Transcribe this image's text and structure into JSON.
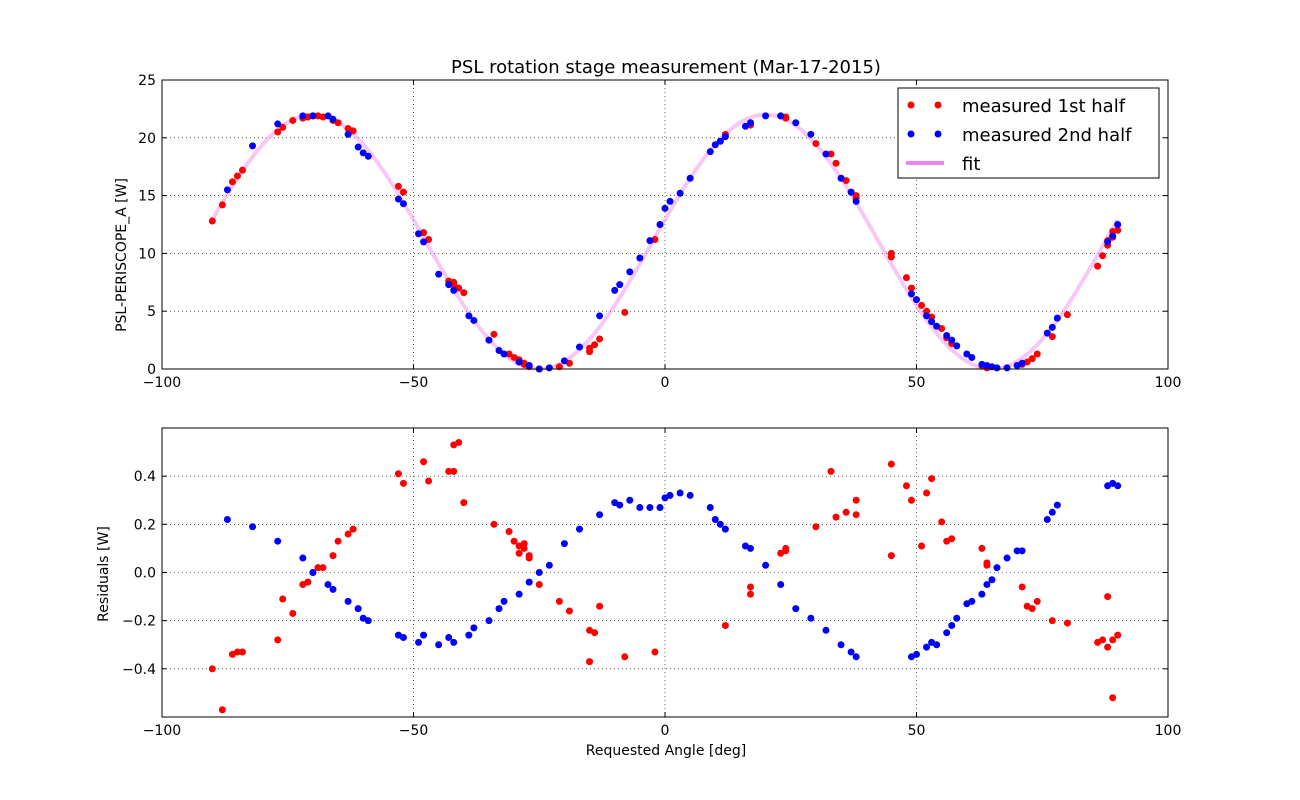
{
  "chart_data": [
    {
      "type": "scatter",
      "title": "PSL rotation stage measurement (Mar-17-2015)",
      "xlabel": "",
      "ylabel": "PSL-PERISCOPE_A [W]",
      "xlim": [
        -100,
        100
      ],
      "ylim": [
        0,
        25
      ],
      "xticks": [
        -100,
        -50,
        0,
        50,
        100
      ],
      "yticks": [
        0,
        5,
        10,
        15,
        20,
        25
      ],
      "xtick_labels": [
        "−100",
        "−50",
        "0",
        "50",
        "100"
      ],
      "ytick_labels": [
        "0",
        "5",
        "10",
        "15",
        "20",
        "25"
      ],
      "grid": true,
      "legend_placement": "top-right",
      "legend": [
        {
          "label": "measured 1st half",
          "color": "#ff0000",
          "marker": "dots"
        },
        {
          "label": "measured 2nd half",
          "color": "#0000ff",
          "marker": "dots"
        },
        {
          "label": "fit",
          "color": "#ee82ee",
          "marker": "line"
        }
      ],
      "fit": {
        "model": "sine",
        "amplitude": 11,
        "offset": 11,
        "period_deg": 90,
        "phase_deg": -2.5,
        "x_range": [
          -90,
          90
        ]
      },
      "series": [
        {
          "name": "measured 1st half",
          "color": "#ff0000",
          "x": [
            -90,
            -88,
            -86,
            -85,
            -84,
            -77,
            -76,
            -74,
            -72,
            -71,
            -70,
            -69,
            -68,
            -66,
            -65,
            -63,
            -62,
            -53,
            -52,
            -48,
            -47,
            -43,
            -42,
            -42,
            -41,
            -40,
            -34,
            -31,
            -30,
            -29,
            -29,
            -28,
            -28,
            -27,
            -27,
            -25,
            -21,
            -19,
            -15,
            -15,
            -14,
            -13,
            -8,
            -2,
            12,
            17,
            17,
            23,
            24,
            24,
            30,
            33,
            34,
            36,
            38,
            38,
            45,
            45,
            48,
            49,
            51,
            52,
            53,
            55,
            56,
            57,
            63,
            64,
            64,
            71,
            72,
            73,
            74,
            77,
            80,
            86,
            87,
            88,
            88,
            89,
            89,
            90
          ],
          "y": [
            12.8,
            14.2,
            16.2,
            16.7,
            17.2,
            20.5,
            20.9,
            21.5,
            21.7,
            21.8,
            21.9,
            21.9,
            21.8,
            21.5,
            21.3,
            20.8,
            20.6,
            15.8,
            15.3,
            11.8,
            11.2,
            7.6,
            7.5,
            7.3,
            7.0,
            6.6,
            3.0,
            1.3,
            1.0,
            0.8,
            0.6,
            0.5,
            0.4,
            0.3,
            0.2,
            0.0,
            0.2,
            0.5,
            1.5,
            1.8,
            2.1,
            2.6,
            4.9,
            11.2,
            20.3,
            21.1,
            21.2,
            21.9,
            21.8,
            21.7,
            19.5,
            18.6,
            17.8,
            16.3,
            15.0,
            14.8,
            10.0,
            9.7,
            7.9,
            7.0,
            5.5,
            5.0,
            4.5,
            3.5,
            2.7,
            2.2,
            0.3,
            0.2,
            0.1,
            0.4,
            0.6,
            0.9,
            1.3,
            2.8,
            4.7,
            8.9,
            9.8,
            10.7,
            11.1,
            11.4,
            11.9,
            12.0
          ]
        },
        {
          "name": "measured 2nd half",
          "color": "#0000ff",
          "x": [
            -87,
            -82,
            -77,
            -72,
            -70,
            -67,
            -66,
            -63,
            -61,
            -60,
            -59,
            -53,
            -52,
            -49,
            -48,
            -45,
            -43,
            -42,
            -39,
            -38,
            -35,
            -33,
            -32,
            -29,
            -27,
            -25,
            -23,
            -20,
            -17,
            -13,
            -10,
            -9,
            -7,
            -5,
            -3,
            -1,
            0,
            1,
            3,
            5,
            9,
            10,
            11,
            12,
            16,
            17,
            20,
            23,
            26,
            29,
            32,
            35,
            37,
            38,
            49,
            50,
            52,
            53,
            54,
            56,
            57,
            58,
            60,
            61,
            63,
            64,
            65,
            66,
            68,
            70,
            71,
            76,
            77,
            78,
            88,
            89,
            90
          ],
          "y": [
            15.5,
            19.3,
            21.2,
            21.9,
            21.9,
            21.9,
            21.6,
            20.3,
            19.2,
            18.7,
            18.4,
            14.7,
            14.3,
            11.7,
            11.0,
            8.2,
            7.3,
            6.8,
            4.6,
            4.2,
            2.5,
            1.6,
            1.3,
            0.6,
            0.3,
            0.0,
            0.1,
            0.7,
            1.9,
            4.6,
            6.8,
            7.3,
            8.4,
            9.6,
            11.1,
            12.5,
            13.9,
            14.5,
            15.2,
            16.5,
            18.8,
            19.4,
            19.7,
            20.1,
            21.0,
            21.3,
            21.9,
            21.9,
            21.3,
            20.3,
            18.6,
            16.5,
            15.3,
            14.5,
            6.5,
            6.0,
            4.6,
            4.1,
            3.7,
            2.9,
            2.5,
            2.0,
            1.3,
            1.0,
            0.4,
            0.3,
            0.2,
            0.1,
            0.1,
            0.3,
            0.5,
            3.1,
            3.6,
            4.4,
            11.0,
            11.5,
            12.5
          ]
        }
      ]
    },
    {
      "type": "scatter",
      "title": "",
      "xlabel": "Requested Angle [deg]",
      "ylabel": "Residuals [W]",
      "xlim": [
        -100,
        100
      ],
      "ylim": [
        -0.6,
        0.6
      ],
      "xticks": [
        -100,
        -50,
        0,
        50,
        100
      ],
      "yticks": [
        -0.4,
        -0.2,
        0.0,
        0.2,
        0.4
      ],
      "xtick_labels": [
        "−100",
        "−50",
        "0",
        "50",
        "100"
      ],
      "ytick_labels": [
        "−0.4",
        "−0.2",
        "0.0",
        "0.2",
        "0.4"
      ],
      "grid": true,
      "series": [
        {
          "name": "measured 1st half",
          "color": "#ff0000",
          "x": [
            -90,
            -88,
            -86,
            -85,
            -84,
            -77,
            -76,
            -74,
            -72,
            -71,
            -70,
            -69,
            -68,
            -66,
            -65,
            -63,
            -62,
            -53,
            -52,
            -48,
            -47,
            -43,
            -42,
            -42,
            -41,
            -40,
            -34,
            -31,
            -30,
            -29,
            -29,
            -28,
            -28,
            -27,
            -27,
            -25,
            -21,
            -19,
            -15,
            -15,
            -14,
            -13,
            -8,
            -2,
            12,
            17,
            17,
            23,
            24,
            24,
            30,
            33,
            34,
            36,
            38,
            38,
            45,
            45,
            48,
            49,
            51,
            52,
            53,
            55,
            56,
            57,
            63,
            64,
            64,
            71,
            72,
            73,
            74,
            77,
            80,
            86,
            87,
            88,
            88,
            89,
            89,
            90
          ],
          "y": [
            -0.4,
            -0.57,
            -0.34,
            -0.33,
            -0.33,
            -0.28,
            -0.11,
            -0.17,
            -0.05,
            -0.04,
            0.0,
            0.02,
            0.02,
            0.07,
            0.13,
            0.16,
            0.18,
            0.41,
            0.37,
            0.46,
            0.38,
            0.42,
            0.53,
            0.42,
            0.54,
            0.29,
            0.2,
            0.17,
            0.13,
            0.11,
            0.08,
            0.1,
            0.12,
            0.07,
            0.06,
            -0.05,
            -0.12,
            -0.16,
            -0.24,
            -0.37,
            -0.25,
            -0.14,
            -0.35,
            -0.33,
            -0.22,
            -0.09,
            -0.06,
            0.08,
            0.1,
            0.09,
            0.19,
            0.42,
            0.23,
            0.25,
            0.3,
            0.24,
            0.45,
            0.07,
            0.36,
            0.3,
            0.11,
            0.33,
            0.39,
            0.21,
            0.13,
            0.14,
            0.1,
            0.04,
            0.03,
            -0.06,
            -0.14,
            -0.15,
            -0.12,
            -0.2,
            -0.21,
            -0.29,
            -0.28,
            -0.31,
            -0.1,
            -0.28,
            -0.52,
            -0.26
          ]
        },
        {
          "name": "measured 2nd half",
          "color": "#0000ff",
          "x": [
            -87,
            -82,
            -77,
            -72,
            -70,
            -67,
            -66,
            -63,
            -61,
            -60,
            -59,
            -53,
            -52,
            -49,
            -48,
            -45,
            -43,
            -42,
            -39,
            -38,
            -35,
            -33,
            -32,
            -29,
            -27,
            -25,
            -23,
            -20,
            -17,
            -13,
            -10,
            -9,
            -7,
            -5,
            -3,
            -1,
            0,
            1,
            3,
            5,
            9,
            10,
            11,
            12,
            16,
            17,
            20,
            23,
            26,
            29,
            32,
            35,
            37,
            38,
            49,
            50,
            52,
            53,
            54,
            56,
            57,
            58,
            60,
            61,
            63,
            64,
            65,
            66,
            68,
            70,
            71,
            76,
            77,
            78,
            88,
            89,
            90
          ],
          "y": [
            0.22,
            0.19,
            0.13,
            0.06,
            0.0,
            -0.05,
            -0.07,
            -0.12,
            -0.15,
            -0.19,
            -0.2,
            -0.26,
            -0.27,
            -0.29,
            -0.26,
            -0.3,
            -0.27,
            -0.29,
            -0.26,
            -0.23,
            -0.2,
            -0.15,
            -0.12,
            -0.09,
            -0.04,
            0.0,
            0.03,
            0.12,
            0.18,
            0.24,
            0.29,
            0.28,
            0.3,
            0.27,
            0.27,
            0.27,
            0.31,
            0.32,
            0.33,
            0.32,
            0.27,
            0.22,
            0.2,
            0.18,
            0.11,
            0.1,
            0.03,
            -0.05,
            -0.15,
            -0.19,
            -0.24,
            -0.3,
            -0.33,
            -0.35,
            -0.35,
            -0.34,
            -0.31,
            -0.29,
            -0.3,
            -0.25,
            -0.22,
            -0.19,
            -0.13,
            -0.12,
            -0.09,
            -0.05,
            -0.03,
            0.02,
            0.06,
            0.09,
            0.09,
            0.22,
            0.25,
            0.28,
            0.36,
            0.37,
            0.36
          ]
        }
      ]
    }
  ]
}
